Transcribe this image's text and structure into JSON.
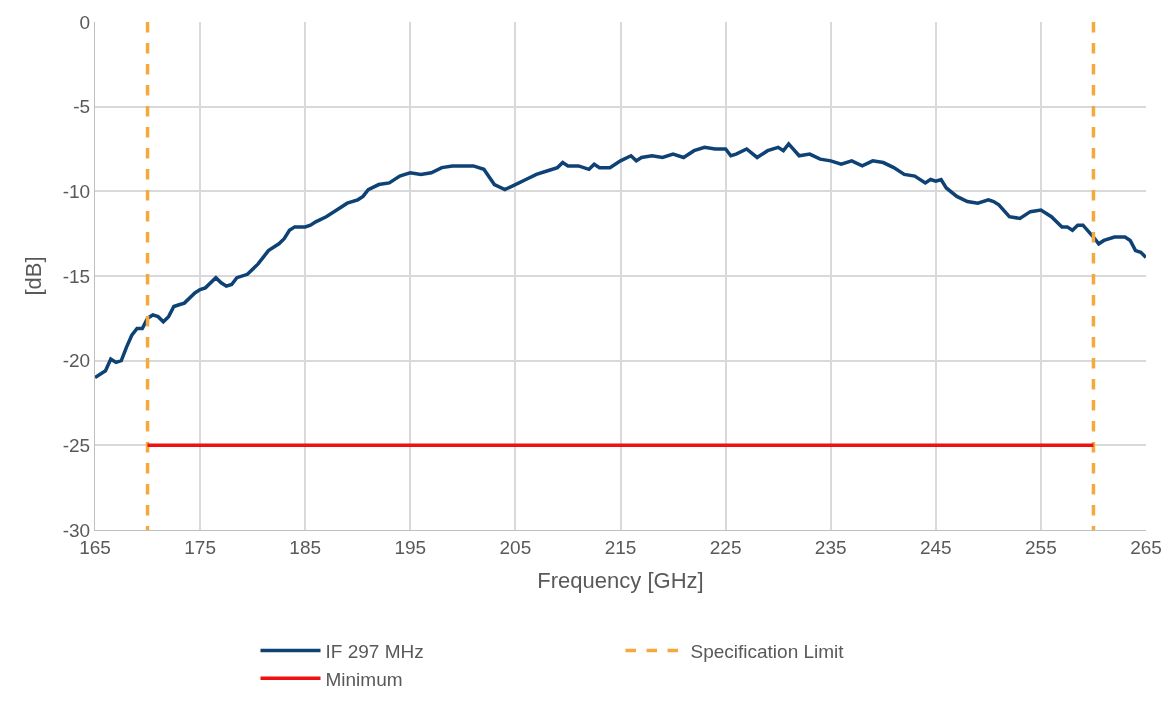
{
  "chart_data": {
    "type": "line",
    "xlabel": "Frequency [GHz]",
    "ylabel": "[dB]",
    "xlim": [
      165,
      265
    ],
    "xticks": [
      165,
      175,
      185,
      195,
      205,
      215,
      225,
      235,
      245,
      255,
      265
    ],
    "ylim": [
      -30,
      0
    ],
    "yticks": [
      -30,
      -25,
      -20,
      -15,
      -10,
      -5,
      0
    ],
    "grid": true,
    "legend": "bottom",
    "marker": "none",
    "series": [
      {
        "name": "IF 297 MHz",
        "color": "#0e4174",
        "line_style": "solid",
        "x": [
          165,
          166,
          166.5,
          167,
          167.5,
          168,
          168.5,
          169,
          169.5,
          170,
          170.5,
          171,
          171.5,
          172,
          172.5,
          173,
          173.5,
          174.5,
          175,
          175.5,
          176.5,
          177,
          177.5,
          178,
          178.5,
          179.5,
          180.5,
          181,
          181.5,
          182.5,
          183,
          183.5,
          184,
          185,
          185.5,
          186,
          187,
          188,
          189,
          190,
          190.5,
          191,
          192,
          193,
          194,
          194.5,
          195,
          196,
          197,
          198,
          199,
          200,
          201,
          202,
          203,
          204,
          205,
          206,
          207,
          208,
          209,
          209.5,
          210,
          211,
          212,
          212.5,
          213,
          214,
          215,
          216,
          216.5,
          217,
          218,
          219,
          220,
          221,
          222,
          223,
          224,
          225,
          225.5,
          226,
          227,
          228,
          229,
          230,
          230.5,
          231,
          232,
          233,
          234,
          235,
          236,
          237,
          238,
          239,
          240,
          241,
          242,
          243,
          244,
          244.5,
          245,
          245.5,
          246,
          247,
          248,
          249,
          250,
          250.5,
          251,
          252,
          253,
          254,
          255,
          256,
          257,
          257.5,
          258,
          258.5,
          259,
          260,
          260.5,
          261,
          262,
          263,
          263.5,
          264,
          264.5,
          265
        ],
        "values": [
          -21.0,
          -20.6,
          -19.9,
          -20.1,
          -20.0,
          -19.2,
          -18.5,
          -18.1,
          -18.1,
          -17.5,
          -17.3,
          -17.4,
          -17.7,
          -17.4,
          -16.8,
          -16.7,
          -16.6,
          -16.0,
          -15.8,
          -15.7,
          -15.1,
          -15.4,
          -15.6,
          -15.5,
          -15.1,
          -14.9,
          -14.3,
          -13.9,
          -13.5,
          -13.1,
          -12.8,
          -12.3,
          -12.1,
          -12.1,
          -12.0,
          -11.8,
          -11.5,
          -11.1,
          -10.7,
          -10.5,
          -10.3,
          -9.9,
          -9.6,
          -9.5,
          -9.1,
          -9.0,
          -8.9,
          -9.0,
          -8.9,
          -8.6,
          -8.5,
          -8.5,
          -8.5,
          -8.7,
          -9.6,
          -9.9,
          -9.6,
          -9.3,
          -9.0,
          -8.8,
          -8.6,
          -8.3,
          -8.5,
          -8.5,
          -8.7,
          -8.4,
          -8.6,
          -8.6,
          -8.2,
          -7.9,
          -8.2,
          -8.0,
          -7.9,
          -8.0,
          -7.8,
          -8.0,
          -7.6,
          -7.4,
          -7.5,
          -7.5,
          -7.9,
          -7.8,
          -7.5,
          -8.0,
          -7.6,
          -7.4,
          -7.6,
          -7.2,
          -7.9,
          -7.8,
          -8.1,
          -8.2,
          -8.4,
          -8.2,
          -8.5,
          -8.2,
          -8.3,
          -8.6,
          -9.0,
          -9.1,
          -9.5,
          -9.3,
          -9.4,
          -9.3,
          -9.8,
          -10.3,
          -10.6,
          -10.7,
          -10.5,
          -10.6,
          -10.8,
          -11.5,
          -11.6,
          -11.2,
          -11.1,
          -11.5,
          -12.1,
          -12.1,
          -12.3,
          -12.0,
          -12.0,
          -12.7,
          -13.1,
          -12.9,
          -12.7,
          -12.7,
          -12.9,
          -13.5,
          -13.6,
          -13.9
        ]
      },
      {
        "name": "Specification Limit",
        "color": "#f5a93a",
        "line_style": "dashed",
        "x": [
          170,
          170
        ],
        "values": [
          0,
          -30
        ]
      },
      {
        "color": "#f5a93a",
        "line_style": "dashed",
        "x": [
          260,
          260
        ],
        "values": [
          0,
          -30
        ]
      },
      {
        "name": "Minimum",
        "color": "#ee1111",
        "line_style": "solid",
        "x": [
          170,
          260
        ],
        "values": [
          -25,
          -25
        ]
      }
    ]
  }
}
